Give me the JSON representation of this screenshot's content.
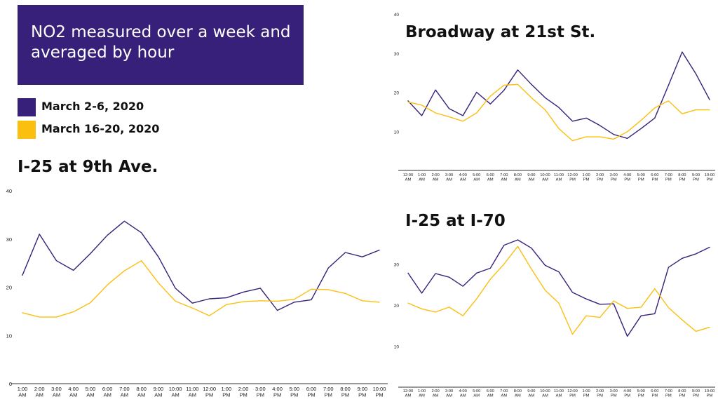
{
  "header": {
    "title": "NO2 measured over a week and averaged by hour"
  },
  "legend": {
    "items": [
      {
        "label": "March 2-6, 2020",
        "color": "#37207a"
      },
      {
        "label": "March 16-20, 2020",
        "color": "#fbbf10"
      }
    ]
  },
  "chart_data": [
    {
      "type": "line",
      "title": "I-25 at 9th Ave.",
      "categories": [
        "1:00 AM",
        "2:00 AM",
        "3:00 AM",
        "4:00 AM",
        "5:00 AM",
        "6:00 AM",
        "7:00 AM",
        "8:00 AM",
        "9:00 AM",
        "10:00 AM",
        "11:00 AM",
        "12:00 PM",
        "1:00 PM",
        "2:00 PM",
        "3:00 PM",
        "4:00 PM",
        "5:00 PM",
        "6:00 PM",
        "7:00 PM",
        "8:00 PM",
        "9:00 PM",
        "10:00 PM"
      ],
      "ylim": [
        0,
        40
      ],
      "yticks": [
        0,
        10,
        20,
        30,
        40
      ],
      "series": [
        {
          "values": [
            22.5,
            31,
            25.5,
            23.5,
            27,
            30.8,
            33.7,
            31.3,
            26.3,
            19.8,
            16.7,
            17.6,
            17.8,
            19,
            19.8,
            15.2,
            16.9,
            17.4,
            24,
            27.2,
            26.3,
            27.7
          ]
        },
        {
          "values": [
            14.7,
            13.8,
            13.8,
            14.9,
            16.8,
            20.5,
            23.4,
            25.5,
            20.9,
            17.1,
            15.7,
            14.1,
            16.4,
            17,
            17.2,
            17.1,
            17.5,
            19.6,
            19.5,
            18.7,
            17.2,
            16.9
          ]
        }
      ]
    },
    {
      "type": "line",
      "title": "Broadway at 21st St.",
      "categories": [
        "12:00 AM",
        "1:00 AM",
        "2:00 AM",
        "3:00 AM",
        "4:00 AM",
        "5:00 AM",
        "6:00 AM",
        "7:00 AM",
        "8:00 AM",
        "9:00 AM",
        "10:00 AM",
        "11:00 AM",
        "12:00 PM",
        "1:00 PM",
        "2:00 PM",
        "3:00 PM",
        "4:00 PM",
        "5:00 PM",
        "6:00 PM",
        "7:00 PM",
        "8:00 PM",
        "9:00 PM",
        "10:00 PM"
      ],
      "ylim": [
        0,
        40
      ],
      "yticks": [
        10,
        20,
        30,
        40
      ],
      "series": [
        {
          "values": [
            17.8,
            14,
            20.6,
            15.8,
            14,
            20,
            17,
            20.5,
            25.7,
            22,
            18.6,
            16.1,
            12.6,
            13.4,
            11.5,
            9.2,
            8.2,
            10.7,
            13.4,
            21.8,
            30.3,
            24.7,
            18.1
          ]
        },
        {
          "values": [
            17.5,
            16.7,
            14.7,
            13.7,
            12.6,
            14.7,
            19,
            21.8,
            22,
            18.6,
            15.5,
            10.7,
            7.6,
            8.6,
            8.6,
            8,
            9.9,
            12.8,
            16,
            17.8,
            14.5,
            15.5,
            15.5
          ]
        }
      ]
    },
    {
      "type": "line",
      "title": "I-25 at I-70",
      "categories": [
        "12:00 AM",
        "1:00 AM",
        "2:00 AM",
        "3:00 AM",
        "4:00 AM",
        "5:00 AM",
        "6:00 AM",
        "7:00 AM",
        "8:00 AM",
        "9:00 AM",
        "10:00 AM",
        "11:00 AM",
        "12:00 PM",
        "1:00 PM",
        "2:00 PM",
        "3:00 PM",
        "4:00 PM",
        "5:00 PM",
        "6:00 PM",
        "7:00 PM",
        "8:00 PM",
        "9:00 PM",
        "10:00 PM"
      ],
      "ylim": [
        0,
        40
      ],
      "yticks": [
        10,
        20,
        30
      ],
      "series": [
        {
          "values": [
            27.8,
            22.9,
            27.7,
            26.8,
            24.6,
            27.8,
            29,
            34.6,
            35.9,
            33.9,
            29.7,
            28.1,
            23.1,
            21.5,
            20.2,
            20.3,
            12.4,
            17.4,
            17.9,
            29.2,
            31.4,
            32.5,
            34.1
          ]
        },
        {
          "values": [
            20.5,
            19.1,
            18.3,
            19.5,
            17.4,
            21.5,
            26.3,
            30,
            34.3,
            28.8,
            23.6,
            20.5,
            12.9,
            17.4,
            17,
            21,
            19.2,
            19.5,
            24,
            19.4,
            16.4,
            13.6,
            14.6
          ]
        }
      ]
    }
  ]
}
